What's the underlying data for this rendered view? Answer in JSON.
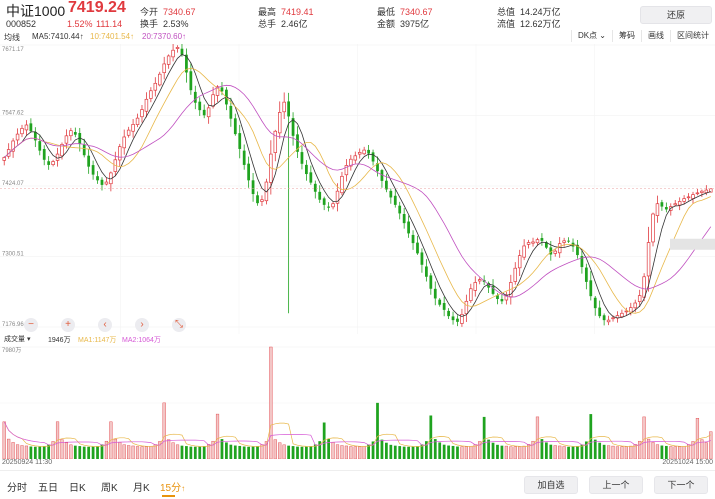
{
  "header": {
    "name": "中证1000",
    "price": "7419.24",
    "code": "000852",
    "change_pct": "1.52%",
    "change_abs": "111.14",
    "stats": [
      {
        "label": "今开",
        "value": "7340.67",
        "color": "#e0393e"
      },
      {
        "label": "换手",
        "value": "2.53%",
        "color": "#333333"
      },
      {
        "label": "最高",
        "value": "7419.41",
        "color": "#e0393e"
      },
      {
        "label": "总手",
        "value": "2.46亿",
        "color": "#333333"
      },
      {
        "label": "最低",
        "value": "7340.67",
        "color": "#e0393e"
      },
      {
        "label": "金额",
        "value": "3975亿",
        "color": "#333333"
      },
      {
        "label": "总值",
        "value": "14.24万亿",
        "color": "#333333"
      },
      {
        "label": "流值",
        "value": "12.62万亿",
        "color": "#333333"
      }
    ],
    "restore_label": "还原"
  },
  "colors": {
    "up": "#e0393e",
    "down": "#1fa31f",
    "ma5": "#333333",
    "ma10": "#e8b84a",
    "ma20": "#c050c0",
    "vol_ma1": "#e8b84a",
    "vol_ma2": "#d65ad6"
  },
  "ma_legend": {
    "type_label": "均线",
    "ma5": "MA5:7410.44↑",
    "ma10": "10:7401.54↑",
    "ma20": "20:7370.60↑"
  },
  "toolbar": {
    "items": [
      "DK点",
      "筹码",
      "画线",
      "区间统计"
    ],
    "dk_suffix": "⌄"
  },
  "y_axis": [
    "7671.17",
    "7547.62",
    "7424.07",
    "7300.51",
    "7176.96"
  ],
  "last_price_tag": "7419.24",
  "volume": {
    "selector_label": "成交量",
    "selector_arrow": "▾",
    "value": "1946万",
    "ma1": "MA1:1147万",
    "ma2": "MA2:1064万",
    "y_top": "7980万"
  },
  "time_axis": {
    "start": "20250924 11:30",
    "end": "20251024 15:00"
  },
  "zoom_controls": [
    "−",
    "+",
    "‹",
    "›",
    "⤡"
  ],
  "period_tabs": [
    {
      "label": "分时",
      "active": false
    },
    {
      "label": "五日",
      "active": false
    },
    {
      "label": "日K",
      "active": false
    },
    {
      "label": "周K",
      "active": false
    },
    {
      "label": "月K",
      "active": false
    },
    {
      "label": "15分",
      "active": true
    }
  ],
  "period_arrow": "↑",
  "footer_buttons": [
    "加自选",
    "上一个",
    "下一个"
  ],
  "chart_data": {
    "type": "candlestick",
    "x_range": [
      "20250924 11:30",
      "20251024 15:00"
    ],
    "bar_count": 160,
    "ylim": [
      7176.96,
      7671.17
    ],
    "y_ticks": [
      7671.17,
      7547.62,
      7424.07,
      7300.51,
      7176.96
    ],
    "volume_ylim": [
      0,
      7980
    ],
    "volume_unit": "万",
    "last_bar": {
      "open": 7413.3,
      "high": 7419.41,
      "low": 7412.8,
      "close": 7419.24,
      "volume": 1946
    },
    "ma_last": {
      "MA5": 7410.44,
      "MA10": 7401.54,
      "MA20": 7370.6
    },
    "vol_ma_last": {
      "MA1": 1147,
      "MA2": 1064
    },
    "closes": [
      7474,
      7488,
      7503,
      7515,
      7525,
      7531,
      7520,
      7504,
      7486,
      7470,
      7461,
      7467,
      7480,
      7497,
      7512,
      7521,
      7514,
      7498,
      7478,
      7458,
      7444,
      7434,
      7426,
      7431,
      7447,
      7470,
      7493,
      7510,
      7522,
      7532,
      7543,
      7558,
      7576,
      7591,
      7604,
      7620,
      7638,
      7652,
      7662,
      7667,
      7654,
      7623,
      7592,
      7570,
      7557,
      7548,
      7561,
      7584,
      7598,
      7590,
      7567,
      7542,
      7515,
      7489,
      7461,
      7434,
      7410,
      7394,
      7400,
      7431,
      7480,
      7520,
      7553,
      7571,
      7546,
      7512,
      7484,
      7463,
      7445,
      7430,
      7414,
      7400,
      7391,
      7386,
      7393,
      7415,
      7441,
      7460,
      7471,
      7477,
      7483,
      7487,
      7481,
      7467,
      7450,
      7433,
      7418,
      7404,
      7391,
      7376,
      7359,
      7341,
      7324,
      7306,
      7286,
      7265,
      7244,
      7227,
      7216,
      7207,
      7196,
      7189,
      7186,
      7199,
      7222,
      7244,
      7255,
      7260,
      7256,
      7246,
      7235,
      7226,
      7222,
      7233,
      7255,
      7280,
      7302,
      7319,
      7325,
      7326,
      7330,
      7328,
      7316,
      7304,
      7310,
      7323,
      7328,
      7327,
      7318,
      7303,
      7282,
      7256,
      7231,
      7210,
      7196,
      7189,
      7189,
      7193,
      7197,
      7201,
      7205,
      7211,
      7219,
      7232,
      7265,
      7325,
      7375,
      7393,
      7388,
      7383,
      7388,
      7393,
      7397,
      7402,
      7405,
      7409,
      7412,
      7415,
      7417,
      7419.24
    ],
    "volumes": [
      2650,
      1420,
      1180,
      1020,
      960,
      930,
      890,
      870,
      880,
      910,
      1030,
      1250,
      2650,
      1380,
      1160,
      1010,
      950,
      920,
      880,
      870,
      880,
      920,
      1040,
      1270,
      2650,
      1420,
      1180,
      1020,
      960,
      930,
      890,
      870,
      880,
      910,
      1030,
      1250,
      4000,
      1380,
      1160,
      1010,
      950,
      920,
      880,
      870,
      880,
      920,
      1040,
      1270,
      3200,
      1420,
      1180,
      1020,
      960,
      930,
      890,
      870,
      880,
      910,
      1030,
      1250,
      7980,
      1380,
      1160,
      1010,
      950,
      920,
      880,
      870,
      880,
      920,
      1040,
      1270,
      2600,
      1420,
      1180,
      1020,
      960,
      930,
      890,
      870,
      880,
      910,
      1030,
      1250,
      4000,
      1380,
      1160,
      1010,
      950,
      920,
      880,
      870,
      880,
      920,
      1040,
      1270,
      3100,
      1420,
      1180,
      1020,
      960,
      930,
      890,
      870,
      880,
      910,
      1030,
      1250,
      3000,
      1380,
      1160,
      1010,
      950,
      920,
      880,
      870,
      880,
      920,
      1040,
      1270,
      3000,
      1420,
      1180,
      1020,
      960,
      930,
      890,
      870,
      880,
      910,
      1030,
      1250,
      3200,
      1380,
      1160,
      1010,
      950,
      920,
      880,
      870,
      880,
      920,
      1040,
      1270,
      3000,
      1420,
      1180,
      1020,
      960,
      930,
      890,
      870,
      880,
      910,
      1030,
      1250,
      2900,
      1380,
      1160,
      1946
    ]
  }
}
